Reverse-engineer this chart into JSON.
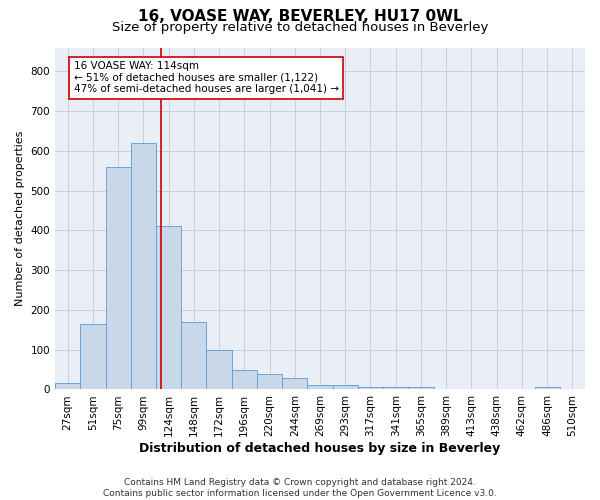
{
  "title1": "16, VOASE WAY, BEVERLEY, HU17 0WL",
  "title2": "Size of property relative to detached houses in Beverley",
  "xlabel": "Distribution of detached houses by size in Beverley",
  "ylabel": "Number of detached properties",
  "footnote": "Contains HM Land Registry data © Crown copyright and database right 2024.\nContains public sector information licensed under the Open Government Licence v3.0.",
  "categories": [
    "27sqm",
    "51sqm",
    "75sqm",
    "99sqm",
    "124sqm",
    "148sqm",
    "172sqm",
    "196sqm",
    "220sqm",
    "244sqm",
    "269sqm",
    "293sqm",
    "317sqm",
    "341sqm",
    "365sqm",
    "389sqm",
    "413sqm",
    "438sqm",
    "462sqm",
    "486sqm",
    "510sqm"
  ],
  "values": [
    15,
    165,
    560,
    620,
    410,
    170,
    100,
    50,
    38,
    28,
    10,
    10,
    7,
    5,
    5,
    2,
    1,
    0,
    0,
    5,
    0
  ],
  "bar_color": "#c8d8e8",
  "bar_edge_color": "#5b9bd5",
  "vline_x": 3.68,
  "vline_color": "#cc0000",
  "annotation_text": "16 VOASE WAY: 114sqm\n← 51% of detached houses are smaller (1,122)\n47% of semi-detached houses are larger (1,041) →",
  "annotation_box_color": "#ffffff",
  "annotation_box_edge": "#cc0000",
  "ylim": [
    0,
    860
  ],
  "yticks": [
    0,
    100,
    200,
    300,
    400,
    500,
    600,
    700,
    800
  ],
  "grid_color": "#c8d0dc",
  "background_color": "#eaeff7",
  "title1_fontsize": 11,
  "title2_fontsize": 9.5,
  "tick_fontsize": 7.5,
  "ylabel_fontsize": 8,
  "xlabel_fontsize": 9,
  "annotation_fontsize": 7.5,
  "footnote_fontsize": 6.5
}
